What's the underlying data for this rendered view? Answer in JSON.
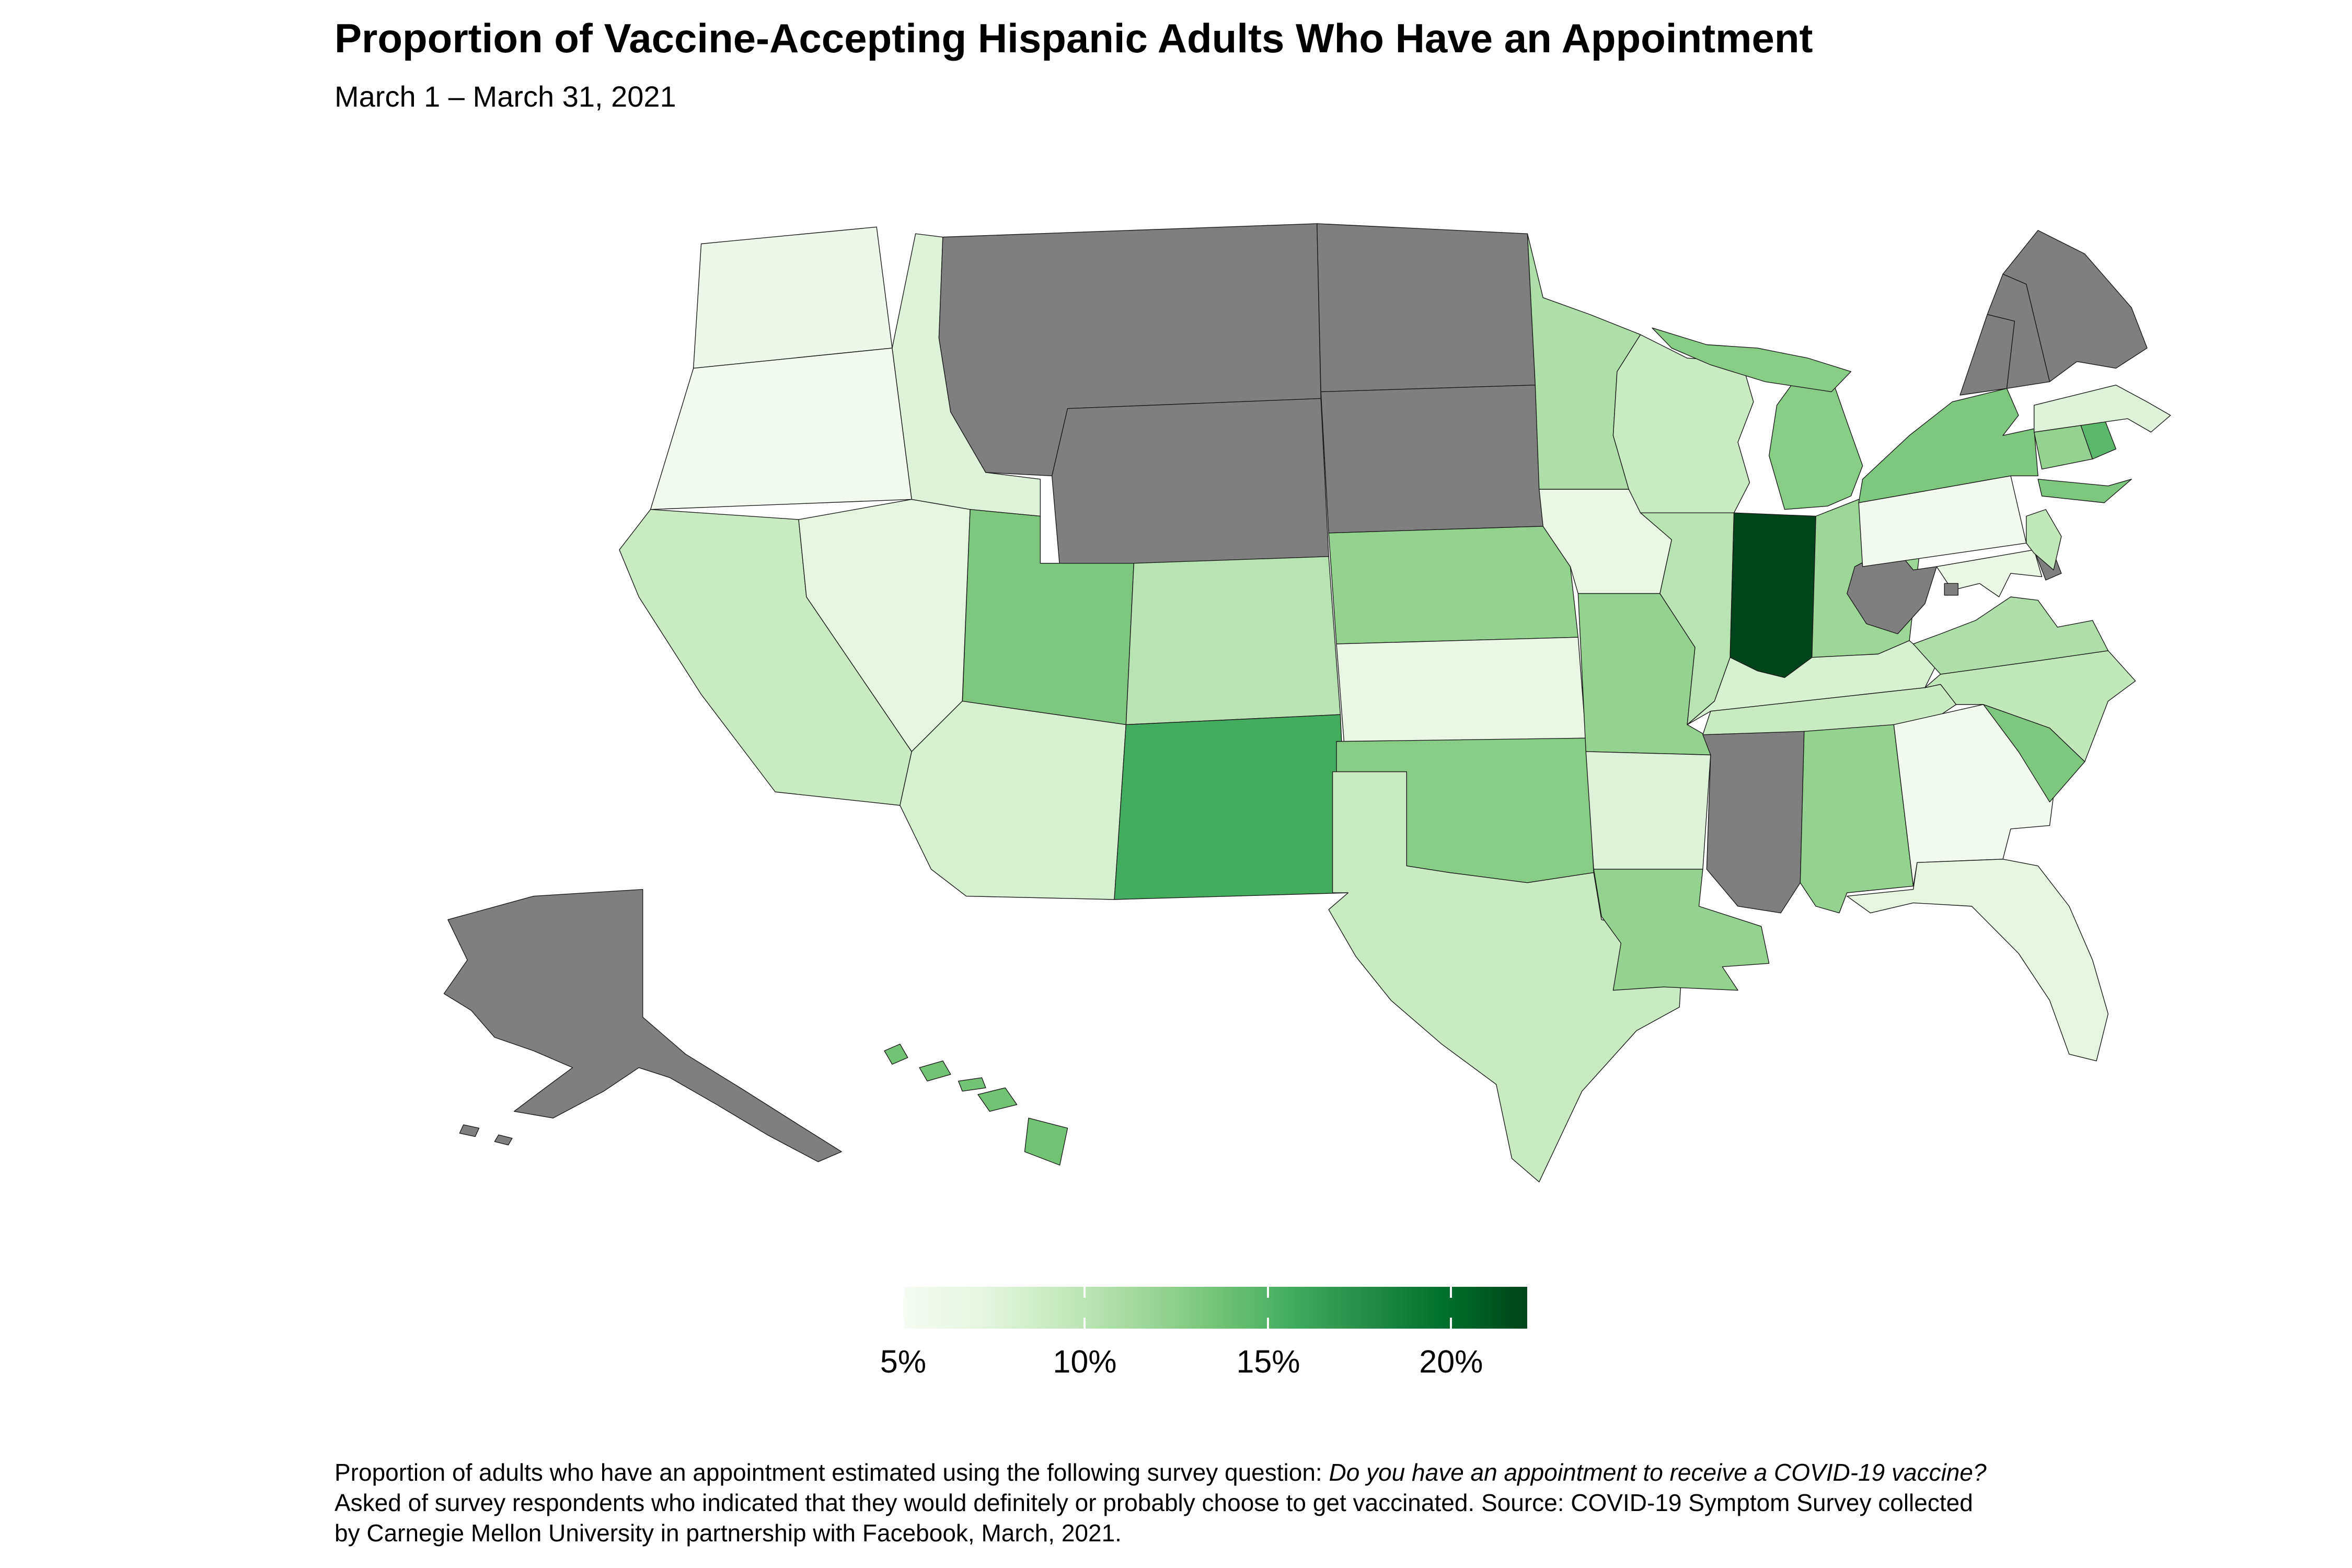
{
  "title": "Proportion of Vaccine-Accepting Hispanic Adults Who Have an Appointment",
  "subtitle": "March 1 – March 31, 2021",
  "caption": {
    "line1_text": "Proportion of adults who have an appointment estimated using the following survey question: ",
    "line1_italic": "Do you have an appointment to receive a COVID-19 vaccine?",
    "line2": "Asked of survey respondents who indicated that they would definitely or probably choose to get vaccinated. Source: COVID-19 Symptom Survey collected",
    "line3": "by Carnegie Mellon University in partnership with Facebook, March, 2021."
  },
  "legend": {
    "gradient_stops": [
      "#F6FCF3",
      "#E5F5E0",
      "#C7E9C0",
      "#A1D99B",
      "#74C476",
      "#41AB5D",
      "#238B45",
      "#006D2C",
      "#00441B"
    ],
    "ticks": [
      {
        "label": "5%",
        "pos": 0.0
      },
      {
        "label": "10%",
        "pos": 29.1
      },
      {
        "label": "15%",
        "pos": 58.5
      },
      {
        "label": "20%",
        "pos": 87.8
      }
    ],
    "no_data_color": "#7F7F7F"
  },
  "chart_data": {
    "type": "heatmap",
    "subtype": "us-state-choropleth",
    "title": "Proportion of Vaccine-Accepting Hispanic Adults Who Have an Appointment",
    "subtitle": "March 1 – March 31, 2021",
    "unit": "percent of vaccine-accepting Hispanic adults with an appointment",
    "color_scale": {
      "palette": [
        "#F7FCF5",
        "#E5F5E0",
        "#C7E9C0",
        "#A1D99B",
        "#74C476",
        "#41AB5D",
        "#238B45",
        "#006D2C",
        "#00441B"
      ],
      "domain": [
        5,
        22
      ],
      "tick_labels": [
        "5%",
        "10%",
        "15%",
        "20%"
      ],
      "no_data_color": "#7F7F7F"
    },
    "states": [
      {
        "abbr": "WA",
        "name": "Washington",
        "value": 6,
        "fill": "#EEF8EA"
      },
      {
        "abbr": "OR",
        "name": "Oregon",
        "value": 5.5,
        "fill": "#F2FAEF"
      },
      {
        "abbr": "CA",
        "name": "California",
        "value": 9,
        "fill": "#C9EAC3"
      },
      {
        "abbr": "NV",
        "name": "Nevada",
        "value": 7,
        "fill": "#E5F5E0"
      },
      {
        "abbr": "ID",
        "name": "Idaho",
        "value": 7.5,
        "fill": "#DEF2D9"
      },
      {
        "abbr": "MT",
        "name": "Montana",
        "value": null,
        "fill": "#7F7F7F"
      },
      {
        "abbr": "WY",
        "name": "Wyoming",
        "value": null,
        "fill": "#7F7F7F"
      },
      {
        "abbr": "UT",
        "name": "Utah",
        "value": 13,
        "fill": "#7DC87E"
      },
      {
        "abbr": "AZ",
        "name": "Arizona",
        "value": 8,
        "fill": "#D7F0D2"
      },
      {
        "abbr": "NM",
        "name": "New Mexico",
        "value": 15.5,
        "fill": "#43AC5E"
      },
      {
        "abbr": "CO",
        "name": "Colorado",
        "value": 10,
        "fill": "#B8E3B2"
      },
      {
        "abbr": "ND",
        "name": "North Dakota",
        "value": null,
        "fill": "#7F7F7F"
      },
      {
        "abbr": "SD",
        "name": "South Dakota",
        "value": null,
        "fill": "#7F7F7F"
      },
      {
        "abbr": "NE",
        "name": "Nebraska",
        "value": 12,
        "fill": "#93D28F"
      },
      {
        "abbr": "KS",
        "name": "Kansas",
        "value": 6.5,
        "fill": "#EAF7E5"
      },
      {
        "abbr": "OK",
        "name": "Oklahoma",
        "value": 12.5,
        "fill": "#88CD86"
      },
      {
        "abbr": "TX",
        "name": "Texas",
        "value": 9,
        "fill": "#C9EAC3"
      },
      {
        "abbr": "MN",
        "name": "Minnesota",
        "value": 10.5,
        "fill": "#AFDFA9"
      },
      {
        "abbr": "IA",
        "name": "Iowa",
        "value": 6.5,
        "fill": "#EAF7E5"
      },
      {
        "abbr": "MO",
        "name": "Missouri",
        "value": 12,
        "fill": "#93D28F"
      },
      {
        "abbr": "AR",
        "name": "Arkansas",
        "value": 7.5,
        "fill": "#DEF2D9"
      },
      {
        "abbr": "LA",
        "name": "Louisiana",
        "value": 12,
        "fill": "#93D28F"
      },
      {
        "abbr": "WI",
        "name": "Wisconsin",
        "value": 9,
        "fill": "#C9EAC3"
      },
      {
        "abbr": "IL",
        "name": "Illinois",
        "value": 10,
        "fill": "#B8E3B2"
      },
      {
        "abbr": "MI",
        "name": "Michigan",
        "value": 12.5,
        "fill": "#88CD86"
      },
      {
        "abbr": "IN",
        "name": "Indiana",
        "value": 22,
        "fill": "#00441B"
      },
      {
        "abbr": "OH",
        "name": "Ohio",
        "value": 11.5,
        "fill": "#9DD798"
      },
      {
        "abbr": "KY",
        "name": "Kentucky",
        "value": 8,
        "fill": "#D7F0D2"
      },
      {
        "abbr": "TN",
        "name": "Tennessee",
        "value": 9,
        "fill": "#C9EAC3"
      },
      {
        "abbr": "MS",
        "name": "Mississippi",
        "value": null,
        "fill": "#7F7F7F"
      },
      {
        "abbr": "AL",
        "name": "Alabama",
        "value": 12,
        "fill": "#93D28F"
      },
      {
        "abbr": "GA",
        "name": "Georgia",
        "value": 5.5,
        "fill": "#F2FAEF"
      },
      {
        "abbr": "FL",
        "name": "Florida",
        "value": 7,
        "fill": "#E5F5E0"
      },
      {
        "abbr": "SC",
        "name": "South Carolina",
        "value": 13,
        "fill": "#7DC87E"
      },
      {
        "abbr": "NC",
        "name": "North Carolina",
        "value": 9.5,
        "fill": "#C1E7BA"
      },
      {
        "abbr": "VA",
        "name": "Virginia",
        "value": 10.5,
        "fill": "#AFDFA9"
      },
      {
        "abbr": "WV",
        "name": "West Virginia",
        "value": null,
        "fill": "#7F7F7F"
      },
      {
        "abbr": "MD",
        "name": "Maryland",
        "value": 6.5,
        "fill": "#EAF7E5"
      },
      {
        "abbr": "DC",
        "name": "District of Columbia",
        "value": null,
        "fill": "#7F7F7F"
      },
      {
        "abbr": "DE",
        "name": "Delaware",
        "value": null,
        "fill": "#7F7F7F"
      },
      {
        "abbr": "PA",
        "name": "Pennsylvania",
        "value": 5.5,
        "fill": "#F2FAEF"
      },
      {
        "abbr": "NJ",
        "name": "New Jersey",
        "value": 9.5,
        "fill": "#C1E7BA"
      },
      {
        "abbr": "NY",
        "name": "New York",
        "value": 13,
        "fill": "#7DC87E"
      },
      {
        "abbr": "CT",
        "name": "Connecticut",
        "value": 12,
        "fill": "#93D28F"
      },
      {
        "abbr": "RI",
        "name": "Rhode Island",
        "value": 14.5,
        "fill": "#5BB86A"
      },
      {
        "abbr": "MA",
        "name": "Massachusetts",
        "value": 7.5,
        "fill": "#DEF2D9"
      },
      {
        "abbr": "VT",
        "name": "Vermont",
        "value": null,
        "fill": "#7F7F7F"
      },
      {
        "abbr": "NH",
        "name": "New Hampshire",
        "value": null,
        "fill": "#7F7F7F"
      },
      {
        "abbr": "ME",
        "name": "Maine",
        "value": null,
        "fill": "#7F7F7F"
      },
      {
        "abbr": "AK",
        "name": "Alaska",
        "value": null,
        "fill": "#7F7F7F"
      },
      {
        "abbr": "HI",
        "name": "Hawaii",
        "value": 13.5,
        "fill": "#73C375"
      }
    ]
  }
}
